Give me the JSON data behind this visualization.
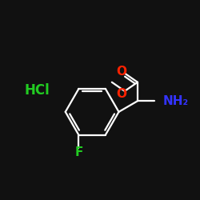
{
  "background_color": "#111111",
  "bond_color": "#ffffff",
  "atom_colors": {
    "O": "#ff2200",
    "N": "#3333ff",
    "F": "#22cc22",
    "Cl": "#22cc22",
    "H": "#ffffff",
    "C": "#ffffff"
  },
  "figsize": [
    2.5,
    2.5
  ],
  "dpi": 100,
  "bond_lw": 1.6,
  "font_size": 11
}
